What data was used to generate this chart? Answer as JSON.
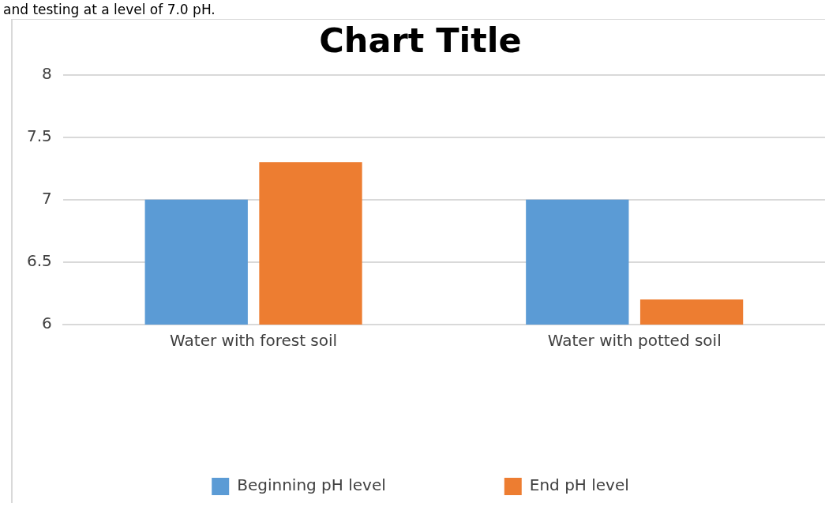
{
  "chart_data": {
    "type": "bar",
    "title": "Chart Title",
    "annotations": [
      "and testing at a level of 7.0 pH."
    ],
    "categories": [
      "Water with forest soil",
      "Water with potted soil"
    ],
    "series": [
      {
        "name": "Beginning pH level",
        "color": "#5b9bd5",
        "values": [
          7,
          7
        ]
      },
      {
        "name": "End pH level",
        "color": "#ed7d31",
        "values": [
          7.3,
          6.2
        ]
      }
    ],
    "ylim": [
      6,
      8
    ],
    "yticks": [
      6,
      {
        "value": 6.5,
        "label": "6.5"
      },
      7,
      {
        "value": 7.5,
        "label": "7.5"
      },
      8
    ],
    "grid": "y",
    "legend": "bottom"
  }
}
